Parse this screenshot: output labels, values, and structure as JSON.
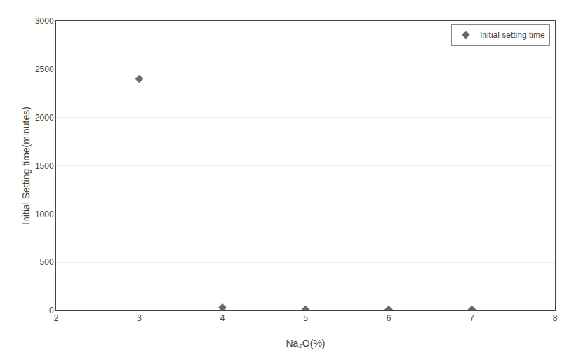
{
  "chart_data": {
    "type": "scatter",
    "x": [
      3,
      4,
      5,
      6,
      7
    ],
    "series": [
      {
        "name": "Initial setting time",
        "color": "#696969",
        "marker": "diamond",
        "values": [
          2400,
          30,
          10,
          10,
          10
        ]
      }
    ],
    "xlabel": "Na₂O(%)",
    "ylabel": "Initial Setting time(minutes)",
    "xlim": [
      2,
      8
    ],
    "ylim": [
      0,
      3000
    ],
    "xticks": [
      2,
      3,
      4,
      5,
      6,
      7,
      8
    ],
    "yticks": [
      0,
      500,
      1000,
      1500,
      2000,
      2500,
      3000
    ],
    "grid": "y",
    "legend": "upper right"
  }
}
